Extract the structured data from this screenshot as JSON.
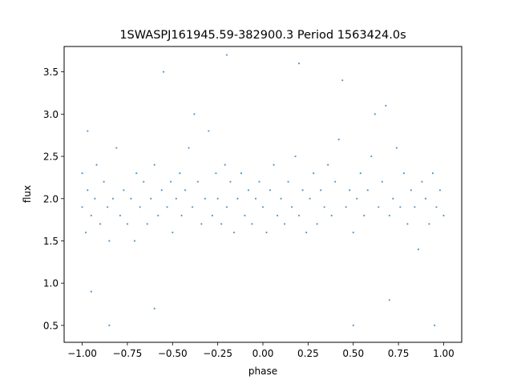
{
  "chart_data": {
    "type": "scatter",
    "title": "1SWASPJ161945.59-382900.3 Period 1563424.0s",
    "xlabel": "phase",
    "ylabel": "flux",
    "xlim": [
      -1.1,
      1.1
    ],
    "ylim": [
      0.3,
      3.8
    ],
    "xticks": [
      -1.0,
      -0.75,
      -0.5,
      -0.25,
      0.0,
      0.25,
      0.5,
      0.75,
      1.0
    ],
    "xtick_labels": [
      "−1.00",
      "−0.75",
      "−0.50",
      "−0.25",
      "0.00",
      "0.25",
      "0.50",
      "0.75",
      "1.00"
    ],
    "yticks": [
      0.5,
      1.0,
      1.5,
      2.0,
      2.5,
      3.0,
      3.5
    ],
    "ytick_labels": [
      "0.5",
      "1.0",
      "1.5",
      "2.0",
      "2.5",
      "3.0",
      "3.5"
    ],
    "grid": false,
    "marker_color": "#1f77b4",
    "series": [
      {
        "points": [
          [
            -1.0,
            1.9
          ],
          [
            -1.0,
            2.3
          ],
          [
            -0.98,
            1.6
          ],
          [
            -0.97,
            2.1
          ],
          [
            -0.97,
            2.8
          ],
          [
            -0.95,
            1.8
          ],
          [
            -0.93,
            2.0
          ],
          [
            -0.92,
            2.4
          ],
          [
            -0.9,
            1.7
          ],
          [
            -0.88,
            2.2
          ],
          [
            -0.86,
            1.9
          ],
          [
            -0.85,
            1.5
          ],
          [
            -0.83,
            2.0
          ],
          [
            -0.81,
            2.6
          ],
          [
            -0.79,
            1.8
          ],
          [
            -0.77,
            2.1
          ],
          [
            -0.75,
            1.7
          ],
          [
            -0.73,
            2.0
          ],
          [
            -0.71,
            1.5
          ],
          [
            -0.7,
            2.3
          ],
          [
            -0.68,
            1.9
          ],
          [
            -0.66,
            2.2
          ],
          [
            -0.64,
            1.7
          ],
          [
            -0.62,
            2.0
          ],
          [
            -0.6,
            2.4
          ],
          [
            -0.58,
            1.8
          ],
          [
            -0.56,
            2.1
          ],
          [
            -0.55,
            3.5
          ],
          [
            -0.53,
            1.9
          ],
          [
            -0.51,
            2.2
          ],
          [
            -0.5,
            1.6
          ],
          [
            -0.48,
            2.0
          ],
          [
            -0.46,
            2.3
          ],
          [
            -0.45,
            1.8
          ],
          [
            -0.43,
            2.1
          ],
          [
            -0.41,
            2.6
          ],
          [
            -0.39,
            1.9
          ],
          [
            -0.38,
            3.0
          ],
          [
            -0.36,
            2.2
          ],
          [
            -0.34,
            1.7
          ],
          [
            -0.32,
            2.0
          ],
          [
            -0.3,
            2.8
          ],
          [
            -0.28,
            1.8
          ],
          [
            -0.26,
            2.3
          ],
          [
            -0.25,
            2.0
          ],
          [
            -0.23,
            1.7
          ],
          [
            -0.21,
            2.4
          ],
          [
            -0.2,
            1.9
          ],
          [
            -0.18,
            2.2
          ],
          [
            -0.16,
            1.6
          ],
          [
            -0.14,
            2.0
          ],
          [
            -0.12,
            2.3
          ],
          [
            -0.1,
            1.8
          ],
          [
            -0.08,
            2.1
          ],
          [
            -0.06,
            1.7
          ],
          [
            -0.04,
            2.0
          ],
          [
            -0.02,
            2.2
          ],
          [
            0.0,
            1.9
          ],
          [
            0.02,
            1.6
          ],
          [
            0.04,
            2.1
          ],
          [
            0.06,
            2.4
          ],
          [
            0.08,
            1.8
          ],
          [
            0.1,
            2.0
          ],
          [
            0.12,
            1.7
          ],
          [
            0.14,
            2.2
          ],
          [
            0.16,
            1.9
          ],
          [
            0.18,
            2.5
          ],
          [
            0.2,
            1.8
          ],
          [
            0.22,
            2.1
          ],
          [
            0.24,
            1.6
          ],
          [
            0.26,
            2.0
          ],
          [
            0.28,
            2.3
          ],
          [
            0.3,
            1.7
          ],
          [
            0.32,
            2.1
          ],
          [
            0.34,
            1.9
          ],
          [
            0.36,
            2.4
          ],
          [
            0.38,
            1.8
          ],
          [
            0.4,
            2.2
          ],
          [
            0.42,
            2.7
          ],
          [
            0.44,
            3.4
          ],
          [
            0.46,
            1.9
          ],
          [
            0.48,
            2.1
          ],
          [
            0.5,
            1.6
          ],
          [
            0.52,
            2.0
          ],
          [
            0.54,
            2.3
          ],
          [
            0.56,
            1.8
          ],
          [
            0.58,
            2.1
          ],
          [
            0.6,
            2.5
          ],
          [
            0.62,
            3.0
          ],
          [
            0.64,
            1.9
          ],
          [
            0.66,
            2.2
          ],
          [
            0.68,
            3.1
          ],
          [
            0.7,
            1.8
          ],
          [
            0.72,
            2.0
          ],
          [
            0.74,
            2.6
          ],
          [
            0.76,
            1.9
          ],
          [
            0.78,
            2.3
          ],
          [
            0.8,
            1.7
          ],
          [
            0.82,
            2.1
          ],
          [
            0.84,
            1.9
          ],
          [
            0.86,
            1.4
          ],
          [
            0.88,
            2.2
          ],
          [
            0.9,
            2.0
          ],
          [
            0.92,
            1.7
          ],
          [
            0.94,
            2.3
          ],
          [
            0.96,
            1.9
          ],
          [
            0.98,
            2.1
          ],
          [
            1.0,
            1.8
          ],
          [
            -0.95,
            0.9
          ],
          [
            -0.6,
            0.7
          ],
          [
            0.2,
            3.6
          ],
          [
            0.5,
            0.5
          ],
          [
            -0.2,
            3.7
          ],
          [
            0.7,
            0.8
          ],
          [
            0.95,
            0.5
          ],
          [
            -0.85,
            0.5
          ]
        ]
      }
    ]
  }
}
